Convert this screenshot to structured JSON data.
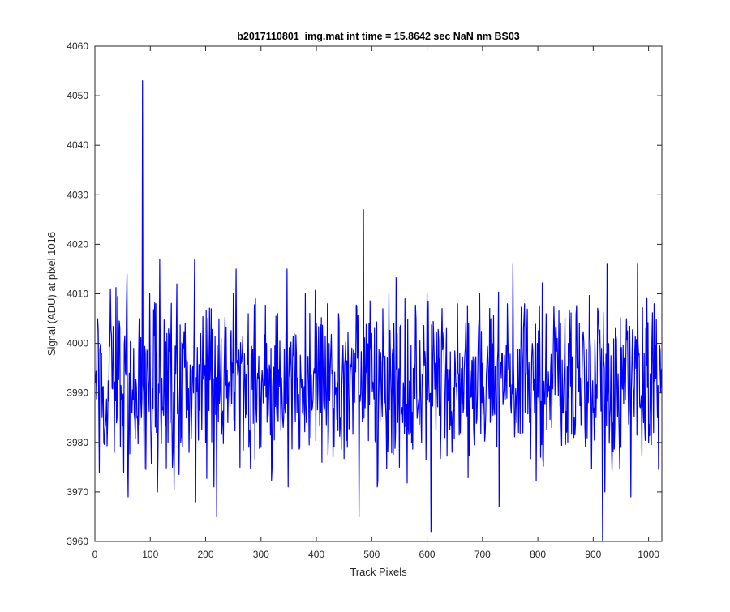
{
  "chart_data": {
    "type": "line",
    "title": "b2017110801_img.mat int time = 15.8642 sec  NaN nm BS03",
    "xlabel": "Track Pixels",
    "ylabel": "Signal (ADU) at pixel 1016",
    "xlim": [
      0,
      1024
    ],
    "ylim": [
      3960,
      4060
    ],
    "xticks": [
      "0",
      "100",
      "200",
      "300",
      "400",
      "500",
      "600",
      "700",
      "800",
      "900",
      "1000"
    ],
    "yticks": [
      "3960",
      "3970",
      "3980",
      "3990",
      "4000",
      "4010",
      "4020",
      "4030",
      "4040",
      "4050",
      "4060"
    ],
    "grid": false,
    "legend": "none",
    "series_color": "#0000ff",
    "series": [
      {
        "x_start": 1,
        "x_step": 1,
        "baseline": 3992,
        "noise_range": [
          3966,
          4017
        ],
        "points": [
          [
            1,
            3992
          ],
          [
            5,
            4005
          ],
          [
            8,
            3974
          ],
          [
            12,
            3998
          ],
          [
            20,
            3985
          ],
          [
            28,
            4011
          ],
          [
            35,
            3978
          ],
          [
            45,
            4003
          ],
          [
            52,
            3974
          ],
          [
            58,
            4014
          ],
          [
            60,
            3969
          ],
          [
            70,
            3999
          ],
          [
            80,
            4005
          ],
          [
            84,
            3985
          ],
          [
            86,
            4053
          ],
          [
            88,
            3990
          ],
          [
            95,
            3998
          ],
          [
            103,
            3981
          ],
          [
            110,
            4008
          ],
          [
            113,
            3970
          ],
          [
            117,
            4017
          ],
          [
            123,
            3987
          ],
          [
            130,
            4002
          ],
          [
            140,
            3975
          ],
          [
            148,
            4012
          ],
          [
            155,
            3980
          ],
          [
            163,
            4004
          ],
          [
            170,
            3978
          ],
          [
            180,
            4017
          ],
          [
            182,
            3968
          ],
          [
            190,
            3999
          ],
          [
            200,
            3980
          ],
          [
            210,
            4007
          ],
          [
            215,
            3971
          ],
          [
            220,
            3965
          ],
          [
            228,
            4001
          ],
          [
            240,
            3984
          ],
          [
            250,
            4010
          ],
          [
            255,
            4015
          ],
          [
            262,
            3975
          ],
          [
            270,
            3998
          ],
          [
            280,
            3982
          ],
          [
            290,
            4009
          ],
          [
            300,
            3979
          ],
          [
            310,
            4000
          ],
          [
            320,
            3975
          ],
          [
            330,
            4006
          ],
          [
            340,
            3983
          ],
          [
            347,
            4015
          ],
          [
            349,
            3971
          ],
          [
            360,
            4002
          ],
          [
            370,
            3979
          ],
          [
            380,
            4010
          ],
          [
            390,
            3981
          ],
          [
            400,
            4004
          ],
          [
            410,
            3976
          ],
          [
            420,
            4008
          ],
          [
            430,
            3977
          ],
          [
            440,
            4006
          ],
          [
            444,
            3985
          ],
          [
            477,
            3965
          ],
          [
            482,
            3992
          ],
          [
            485,
            4027
          ],
          [
            488,
            3987
          ],
          [
            500,
            4002
          ],
          [
            510,
            3971
          ],
          [
            520,
            4007
          ],
          [
            530,
            3984
          ],
          [
            540,
            4004
          ],
          [
            550,
            3975
          ],
          [
            560,
            4009
          ],
          [
            570,
            3982
          ],
          [
            580,
            4005
          ],
          [
            590,
            3980
          ],
          [
            600,
            4010
          ],
          [
            607,
            3962
          ],
          [
            615,
            3996
          ],
          [
            625,
            3983
          ],
          [
            635,
            4003
          ],
          [
            645,
            3978
          ],
          [
            655,
            4008
          ],
          [
            665,
            3986
          ],
          [
            675,
            4004
          ],
          [
            685,
            3980
          ],
          [
            695,
            4010
          ],
          [
            705,
            3982
          ],
          [
            715,
            4005
          ],
          [
            725,
            3985
          ],
          [
            730,
            3967
          ],
          [
            735,
            3998
          ],
          [
            745,
            4008
          ],
          [
            755,
            4016
          ],
          [
            765,
            3982
          ],
          [
            775,
            4005
          ],
          [
            785,
            3984
          ],
          [
            795,
            4003
          ],
          [
            805,
            3977
          ],
          [
            815,
            4006
          ],
          [
            825,
            3983
          ],
          [
            835,
            4001
          ],
          [
            845,
            3986
          ],
          [
            855,
            4000
          ],
          [
            865,
            3981
          ],
          [
            875,
            4004
          ],
          [
            885,
            3983
          ],
          [
            895,
            3999
          ],
          [
            905,
            3985
          ],
          [
            915,
            3999
          ],
          [
            917,
            3958
          ],
          [
            921,
            3970
          ],
          [
            925,
            4016
          ],
          [
            930,
            3985
          ],
          [
            940,
            4003
          ],
          [
            950,
            3979
          ],
          [
            960,
            4005
          ],
          [
            968,
            3969
          ],
          [
            975,
            3998
          ],
          [
            980,
            4016
          ],
          [
            985,
            3987
          ],
          [
            995,
            4003
          ],
          [
            1000,
            3980
          ],
          [
            1010,
            4008
          ],
          [
            1016,
            3985
          ],
          [
            1024,
            3995
          ]
        ]
      }
    ]
  }
}
